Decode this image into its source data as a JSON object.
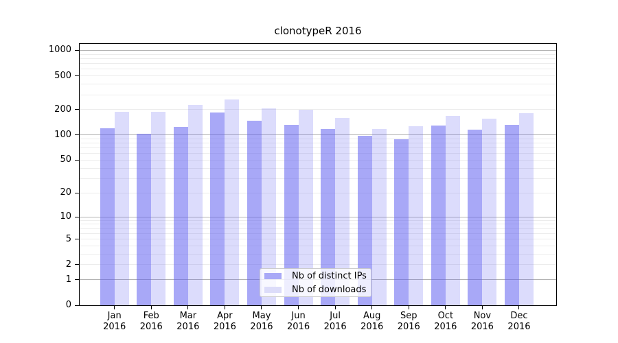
{
  "chart_data": {
    "type": "bar",
    "title": "clonotypeR 2016",
    "categories": [
      "Jan 2016",
      "Feb 2016",
      "Mar 2016",
      "Apr 2016",
      "May 2016",
      "Jun 2016",
      "Jul 2016",
      "Aug 2016",
      "Sep 2016",
      "Oct 2016",
      "Nov 2016",
      "Dec 2016"
    ],
    "series": [
      {
        "name": "Nb of distinct IPs",
        "color": "#a9a9f7",
        "color_rgba": "rgba(97,97,240,0.55)",
        "values": [
          120,
          104,
          125,
          184,
          148,
          132,
          118,
          98,
          89,
          129,
          116,
          131
        ]
      },
      {
        "name": "Nb of downloads",
        "color": "#dcdcf9",
        "color_rgba": "rgba(97,97,240,0.22)",
        "values": [
          187,
          189,
          225,
          264,
          206,
          198,
          158,
          118,
          126,
          168,
          157,
          181
        ]
      }
    ],
    "y_scale": "log1p",
    "y_ticks": [
      0,
      1,
      2,
      5,
      10,
      20,
      50,
      100,
      200,
      500,
      1000
    ],
    "ylim": [
      0,
      1190
    ],
    "xlabel": "",
    "ylabel": "",
    "grid": true,
    "grid_major_values": [
      1,
      10,
      100,
      1000
    ],
    "grid_major_color": "#b2b2b2",
    "grid_minor_color": "#ececec",
    "legend_position": "lower center",
    "background": "#ffffff",
    "spine_color": "#000000"
  }
}
